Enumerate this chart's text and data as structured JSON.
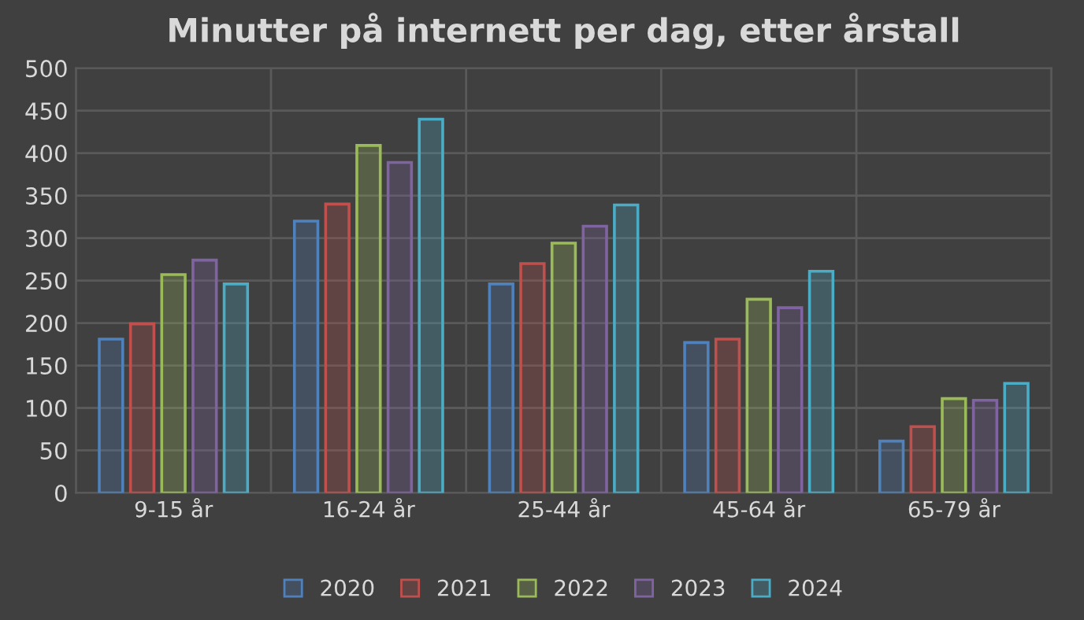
{
  "chart_data": {
    "type": "bar",
    "title": "Minutter på internett per dag, etter årstall",
    "categories": [
      "9-15 år",
      "16-24 år",
      "25-44 år",
      "45-64 år",
      "65-79 år"
    ],
    "series": [
      {
        "name": "2020",
        "color": "#4f81bd",
        "values": [
          181,
          320,
          246,
          177,
          61
        ]
      },
      {
        "name": "2021",
        "color": "#c0504d",
        "values": [
          199,
          340,
          270,
          181,
          78
        ]
      },
      {
        "name": "2022",
        "color": "#9bbb59",
        "values": [
          257,
          409,
          294,
          228,
          111
        ]
      },
      {
        "name": "2023",
        "color": "#8064a2",
        "values": [
          274,
          389,
          314,
          218,
          109
        ]
      },
      {
        "name": "2024",
        "color": "#4bacc6",
        "values": [
          246,
          440,
          339,
          261,
          129
        ]
      }
    ],
    "ylim": [
      0,
      500
    ],
    "yticks": [
      0,
      50,
      100,
      150,
      200,
      250,
      300,
      350,
      400,
      450,
      500
    ],
    "grid": true,
    "legend": "bottom"
  }
}
